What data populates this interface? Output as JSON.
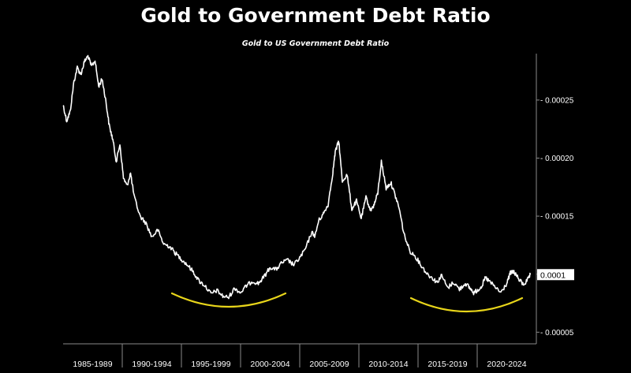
{
  "title": "Gold to Government Debt Ratio",
  "subtitle": "Gold to US Government Debt Ratio",
  "colors": {
    "background": "#000000",
    "line": "#ffffff",
    "highlight_curve": "#e8d51a",
    "axis": "#8a8a8a",
    "last_value_badge_bg": "#ffffff",
    "last_value_badge_text": "#000000"
  },
  "chart_data": {
    "type": "line",
    "title": "Gold to US Government Debt Ratio",
    "xlabel": "",
    "ylabel": "",
    "x_unit": "year",
    "xlim": [
      1985.0,
      2025.0
    ],
    "ylim": [
      4e-05,
      0.00029
    ],
    "y_scale": "linear",
    "grid": false,
    "legend": "none",
    "y_axis_position": "right",
    "x_tick_labels": [
      "1985-1989",
      "1990-1994",
      "1995-1999",
      "2000-2004",
      "2005-2009",
      "2010-2014",
      "2015-2019",
      "2020-2024"
    ],
    "y_ticks": [
      5e-05,
      0.0001,
      0.00015,
      0.0002,
      0.00025
    ],
    "y_tick_labels": [
      "0.00005",
      "0.00010",
      "0.00015",
      "0.00020",
      "0.00025"
    ],
    "last_value_label": "0.0001",
    "last_value": 9.96e-05,
    "series": [
      {
        "values_x": [
          1985.0,
          1985.3,
          1985.6,
          1985.9,
          1986.2,
          1986.5,
          1986.8,
          1987.1,
          1987.4,
          1987.7,
          1988.0,
          1988.3,
          1988.6,
          1988.9,
          1989.2,
          1989.5,
          1989.8,
          1990.1,
          1990.4,
          1990.7,
          1991.0,
          1991.5,
          1992.0,
          1992.5,
          1993.0,
          1993.5,
          1994.0,
          1994.5,
          1995.0,
          1995.5,
          1996.0,
          1996.5,
          1997.0,
          1997.5,
          1998.0,
          1998.5,
          1999.0,
          1999.5,
          2000.0,
          2000.5,
          2001.0,
          2001.5,
          2002.0,
          2002.5,
          2003.0,
          2003.5,
          2004.0,
          2004.5,
          2005.0,
          2005.5,
          2006.0,
          2006.3,
          2006.6,
          2007.0,
          2007.4,
          2007.8,
          2008.0,
          2008.3,
          2008.6,
          2009.0,
          2009.4,
          2009.8,
          2010.2,
          2010.6,
          2011.0,
          2011.3,
          2011.6,
          2011.9,
          2012.3,
          2012.7,
          2013.0,
          2013.4,
          2013.8,
          2014.3,
          2014.8,
          2015.3,
          2015.8,
          2016.3,
          2016.6,
          2017.0,
          2017.5,
          2018.0,
          2018.5,
          2019.0,
          2019.3,
          2019.7,
          2020.0,
          2020.4,
          2020.7,
          2021.0,
          2021.5,
          2022.0,
          2022.5,
          2022.8,
          2023.1,
          2023.5,
          2023.9,
          2024.2,
          2024.5
        ],
        "values_y": [
          0.000246,
          0.000232,
          0.00024,
          0.000265,
          0.000278,
          0.000272,
          0.000283,
          0.000288,
          0.000279,
          0.000284,
          0.000262,
          0.000268,
          0.00025,
          0.000228,
          0.000216,
          0.000197,
          0.000212,
          0.000183,
          0.000176,
          0.000187,
          0.000167,
          0.00015,
          0.000144,
          0.000132,
          0.000138,
          0.000126,
          0.000124,
          0.000118,
          0.000113,
          0.000108,
          0.000102,
          9.4e-05,
          9e-05,
          8.3e-05,
          8.6e-05,
          8.1e-05,
          8e-05,
          8.8e-05,
          8.4e-05,
          9e-05,
          9.4e-05,
          9.2e-05,
          9.8e-05,
          0.000106,
          0.000104,
          0.00011,
          0.000112,
          0.000108,
          0.000114,
          0.000122,
          0.000136,
          0.000133,
          0.000146,
          0.000152,
          0.00016,
          0.000188,
          0.000205,
          0.000215,
          0.00018,
          0.000186,
          0.000156,
          0.000163,
          0.000148,
          0.000166,
          0.000155,
          0.00016,
          0.00017,
          0.000197,
          0.000174,
          0.000179,
          0.00017,
          0.000157,
          0.000135,
          0.00012,
          0.000115,
          0.000107,
          0.0001,
          9.6e-05,
          9.3e-05,
          9.9e-05,
          8.8e-05,
          9.3e-05,
          8.7e-05,
          9.2e-05,
          8.9e-05,
          8.4e-05,
          8.6e-05,
          9e-05,
          9.7e-05,
          9.4e-05,
          8.9e-05,
          8.4e-05,
          9.2e-05,
          0.000101,
          0.000102,
          9.6e-05,
          9.1e-05,
          9.4e-05,
          9.96e-05
        ]
      }
    ]
  }
}
